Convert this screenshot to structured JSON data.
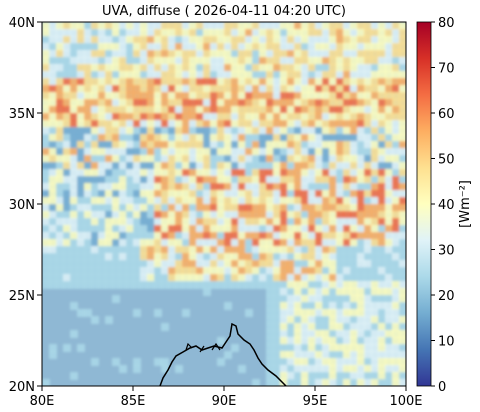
{
  "title": "UVA, diffuse ( 2026-04-11 04:20 UTC)",
  "map": {
    "x_ticks": [
      "80E",
      "85E",
      "90E",
      "95E",
      "100E"
    ],
    "y_ticks": [
      "20N",
      "25N",
      "30N",
      "35N",
      "40N"
    ],
    "lon_range": [
      80,
      100
    ],
    "lat_range": [
      20,
      40
    ]
  },
  "colorbar": {
    "label": "[Wm⁻²]",
    "ticks": [
      "0",
      "10",
      "20",
      "30",
      "40",
      "50",
      "60",
      "70",
      "80"
    ],
    "range": [
      0,
      80
    ],
    "colors": [
      "#313695",
      "#4575b4",
      "#74add1",
      "#abd9e9",
      "#e0f3f8",
      "#ffffbf",
      "#fee090",
      "#fdae61",
      "#f46d43",
      "#d73027",
      "#a50026"
    ]
  },
  "colors": {
    "background_field": "#8fb8d4",
    "coastline": "#000000"
  }
}
